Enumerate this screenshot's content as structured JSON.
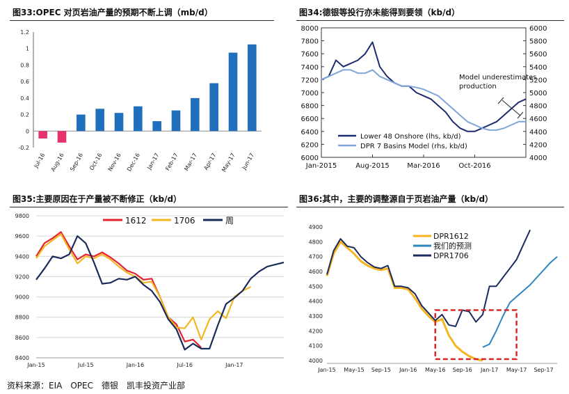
{
  "source_note": "资料来源：EIA　OPEC　德银　凯丰投资产业部",
  "charts": [
    {
      "title": "图33:OPEC 对页岩油产量的预期不断上调（mb/d）",
      "chart_data": {
        "type": "bar",
        "categories": [
          "Jul-16",
          "Aug-16",
          "Sep-16",
          "Oct-16",
          "Nov-16",
          "Dec-16",
          "Jan-17",
          "Feb-17",
          "Mar-17",
          "Apr-17",
          "May-17",
          "Jun-17"
        ],
        "values": [
          -0.09,
          -0.14,
          0.2,
          0.27,
          0.22,
          0.3,
          0.12,
          0.25,
          0.4,
          0.58,
          0.95,
          1.05
        ],
        "ylim": [
          -0.2,
          1.2
        ],
        "yticks": [
          -0.2,
          0,
          0.2,
          0.4,
          0.6,
          0.8,
          1,
          1.2
        ],
        "ytick_labels": [
          "-0.2",
          "0",
          "0.2",
          "0.4",
          "0.6",
          "0.8",
          "1",
          "1.2"
        ],
        "colors": {
          "positive": "#1f6fbd",
          "negative": "#e7336b"
        },
        "grid": false
      }
    },
    {
      "title": "图34:德银等投行亦未能得到要领（kb/d）",
      "chart_data": {
        "type": "line",
        "x_range": [
          "2015-01",
          "2017-05"
        ],
        "xticks": [
          {
            "label": "Jan-2015",
            "x": "2015-01"
          },
          {
            "label": "Aug-2015",
            "x": "2015-08"
          },
          {
            "label": "Mar-2016",
            "x": "2016-03"
          },
          {
            "label": "Oct-2016",
            "x": "2016-10"
          }
        ],
        "ylim": [
          6000,
          8000
        ],
        "yticks": [
          6000,
          6200,
          6400,
          6600,
          6800,
          7000,
          7200,
          7400,
          7600,
          7800,
          8000
        ],
        "y2lim": [
          4000,
          6000
        ],
        "y2ticks": [
          4000,
          4200,
          4400,
          4600,
          4800,
          5000,
          5200,
          5400,
          5600,
          5800,
          6000
        ],
        "series": [
          {
            "name": "Lower 48 Onshore (lhs, kb/d)",
            "axis": "left",
            "color": "#1d2a6e",
            "x": [
              "2015-01",
              "2015-02",
              "2015-03",
              "2015-04",
              "2015-05",
              "2015-06",
              "2015-07",
              "2015-08",
              "2015-09",
              "2015-10",
              "2015-11",
              "2015-12",
              "2016-01",
              "2016-02",
              "2016-03",
              "2016-04",
              "2016-05",
              "2016-06",
              "2016-07",
              "2016-08",
              "2016-09",
              "2016-10",
              "2016-11",
              "2016-12",
              "2017-01",
              "2017-02",
              "2017-03",
              "2017-04",
              "2017-05"
            ],
            "y": [
              7200,
              7250,
              7500,
              7400,
              7450,
              7500,
              7600,
              7780,
              7400,
              7250,
              7150,
              7100,
              7100,
              7000,
              6950,
              6900,
              6800,
              6700,
              6550,
              6450,
              6400,
              6400,
              6450,
              6500,
              6550,
              6650,
              6750,
              6850,
              6900
            ]
          },
          {
            "name": "DPR 7 Basins Model (rhs, kb/d)",
            "axis": "right",
            "color": "#7ea6d9",
            "x": [
              "2015-01",
              "2015-02",
              "2015-03",
              "2015-04",
              "2015-05",
              "2015-06",
              "2015-07",
              "2015-08",
              "2015-09",
              "2015-10",
              "2015-11",
              "2015-12",
              "2016-01",
              "2016-02",
              "2016-03",
              "2016-04",
              "2016-05",
              "2016-06",
              "2016-07",
              "2016-08",
              "2016-09",
              "2016-10",
              "2016-11",
              "2016-12",
              "2017-01",
              "2017-02",
              "2017-03",
              "2017-04",
              "2017-05"
            ],
            "y": [
              5200,
              5250,
              5300,
              5350,
              5350,
              5300,
              5300,
              5350,
              5250,
              5200,
              5150,
              5100,
              5100,
              5080,
              5050,
              5000,
              4950,
              4850,
              4750,
              4650,
              4550,
              4500,
              4450,
              4420,
              4420,
              4450,
              4500,
              4550,
              4550
            ]
          }
        ],
        "annotation": "Model underestimates production",
        "legend": "bottom-left"
      }
    },
    {
      "title": "图35:主要原因在于产量被不断修正（kb/d）",
      "chart_data": {
        "type": "line",
        "x_range": [
          "2015-01",
          "2017-07"
        ],
        "xticks": [
          {
            "label": "Jan-15",
            "x": "2015-01"
          },
          {
            "label": "Jul-15",
            "x": "2015-07"
          },
          {
            "label": "Jan-16",
            "x": "2016-01"
          },
          {
            "label": "Jul-16",
            "x": "2016-07"
          },
          {
            "label": "Jan-17",
            "x": "2017-01"
          }
        ],
        "ylim": [
          8400,
          9800
        ],
        "yticks": [
          8400,
          8600,
          8800,
          9000,
          9200,
          9400,
          9600,
          9800
        ],
        "series": [
          {
            "name": "1612",
            "color": "#e4232e",
            "x": [
              "2015-01",
              "2015-02",
              "2015-03",
              "2015-04",
              "2015-05",
              "2015-06",
              "2015-07",
              "2015-08",
              "2015-09",
              "2015-10",
              "2015-11",
              "2015-12",
              "2016-01",
              "2016-02",
              "2016-03",
              "2016-04",
              "2016-05",
              "2016-06",
              "2016-07",
              "2016-08",
              "2016-09"
            ],
            "y": [
              9400,
              9530,
              9580,
              9640,
              9500,
              9370,
              9420,
              9400,
              9440,
              9390,
              9330,
              9260,
              9230,
              9170,
              9180,
              9000,
              8800,
              8730,
              8560,
              8580,
              8500
            ]
          },
          {
            "name": "1706",
            "color": "#f2b622",
            "x": [
              "2015-01",
              "2015-02",
              "2015-03",
              "2015-04",
              "2015-05",
              "2015-06",
              "2015-07",
              "2015-08",
              "2015-09",
              "2015-10",
              "2015-11",
              "2015-12",
              "2016-01",
              "2016-02",
              "2016-03",
              "2016-04",
              "2016-05",
              "2016-06",
              "2016-07",
              "2016-08",
              "2016-09",
              "2016-10",
              "2016-11",
              "2016-12",
              "2017-01",
              "2017-02",
              "2017-03"
            ],
            "y": [
              9380,
              9500,
              9560,
              9620,
              9470,
              9330,
              9400,
              9380,
              9420,
              9370,
              9300,
              9240,
              9200,
              9140,
              9150,
              9000,
              8800,
              8700,
              8690,
              8800,
              8580,
              8780,
              8860,
              8790,
              9000,
              9060,
              9100
            ]
          },
          {
            "name": "周",
            "color": "#1a2a5a",
            "x": [
              "2015-01",
              "2015-02",
              "2015-03",
              "2015-04",
              "2015-05",
              "2015-06",
              "2015-07",
              "2015-08",
              "2015-09",
              "2015-10",
              "2015-11",
              "2015-12",
              "2016-01",
              "2016-02",
              "2016-03",
              "2016-04",
              "2016-05",
              "2016-06",
              "2016-07",
              "2016-08",
              "2016-09",
              "2016-10",
              "2016-11",
              "2016-12",
              "2017-01",
              "2017-02",
              "2017-03",
              "2017-04",
              "2017-05",
              "2017-06",
              "2017-07"
            ],
            "y": [
              9170,
              9280,
              9400,
              9380,
              9420,
              9600,
              9530,
              9340,
              9130,
              9140,
              9180,
              9170,
              9200,
              9120,
              9060,
              8950,
              8780,
              8680,
              8480,
              8540,
              8490,
              8490,
              8720,
              8930,
              8990,
              9060,
              9180,
              9250,
              9300,
              9320,
              9340
            ]
          }
        ],
        "legend": "top"
      }
    },
    {
      "title": "图36:其中，主要的调整源自于页岩油产量（kb/d）",
      "chart_data": {
        "type": "line",
        "x_range": [
          "2015-01",
          "2017-11"
        ],
        "xticks": [
          {
            "label": "Jan-15",
            "x": "2015-01"
          },
          {
            "label": "May-15",
            "x": "2015-05"
          },
          {
            "label": "Sep-15",
            "x": "2015-09"
          },
          {
            "label": "Jan-16",
            "x": "2016-01"
          },
          {
            "label": "May-16",
            "x": "2016-05"
          },
          {
            "label": "Sep-16",
            "x": "2016-09"
          },
          {
            "label": "Jan-17",
            "x": "2017-01"
          },
          {
            "label": "May-17",
            "x": "2017-05"
          },
          {
            "label": "Sep-17",
            "x": "2017-09"
          }
        ],
        "ylim": [
          4000,
          4900
        ],
        "yticks": [
          4000,
          4100,
          4200,
          4300,
          4400,
          4500,
          4600,
          4700,
          4800,
          4900
        ],
        "series": [
          {
            "name": "DPR1612",
            "color": "#f5b320",
            "x": [
              "2015-01",
              "2015-02",
              "2015-03",
              "2015-04",
              "2015-05",
              "2015-06",
              "2015-07",
              "2015-08",
              "2015-09",
              "2015-10",
              "2015-11",
              "2015-12",
              "2016-01",
              "2016-02",
              "2016-03",
              "2016-04",
              "2016-05",
              "2016-06",
              "2016-07",
              "2016-08",
              "2016-09",
              "2016-10",
              "2016-11",
              "2016-12"
            ],
            "y": [
              4570,
              4720,
              4800,
              4760,
              4720,
              4670,
              4640,
              4620,
              4610,
              4620,
              4490,
              4490,
              4480,
              4420,
              4350,
              4300,
              4260,
              4280,
              4170,
              4100,
              4060,
              4030,
              4010,
              4000
            ]
          },
          {
            "name": "我们的预测",
            "color": "#2e86c1",
            "x": [
              "2016-12",
              "2017-01",
              "2017-02",
              "2017-03",
              "2017-04",
              "2017-05",
              "2017-06",
              "2017-07",
              "2017-08",
              "2017-09",
              "2017-10",
              "2017-11"
            ],
            "y": [
              4090,
              4110,
              4200,
              4300,
              4390,
              4430,
              4470,
              4510,
              4560,
              4610,
              4660,
              4700
            ]
          },
          {
            "name": "DPR1706",
            "color": "#1a2a5a",
            "x": [
              "2015-01",
              "2015-02",
              "2015-03",
              "2015-04",
              "2015-05",
              "2015-06",
              "2015-07",
              "2015-08",
              "2015-09",
              "2015-10",
              "2015-11",
              "2015-12",
              "2016-01",
              "2016-02",
              "2016-03",
              "2016-04",
              "2016-05",
              "2016-06",
              "2016-07",
              "2016-08",
              "2016-09",
              "2016-10",
              "2016-11",
              "2016-12",
              "2017-01",
              "2017-02",
              "2017-03",
              "2017-04",
              "2017-05",
              "2017-06",
              "2017-07"
            ],
            "y": [
              4580,
              4740,
              4820,
              4770,
              4760,
              4700,
              4660,
              4630,
              4620,
              4640,
              4500,
              4500,
              4490,
              4450,
              4370,
              4320,
              4270,
              4310,
              4240,
              4230,
              4340,
              4330,
              4260,
              4310,
              4500,
              4500,
              4560,
              4620,
              4680,
              4780,
              4880
            ]
          }
        ],
        "highlight_box": {
          "x": [
            "2016-05",
            "2017-05"
          ],
          "y": [
            4010,
            4340
          ],
          "color": "#d62828"
        },
        "legend": "top-center"
      }
    }
  ]
}
